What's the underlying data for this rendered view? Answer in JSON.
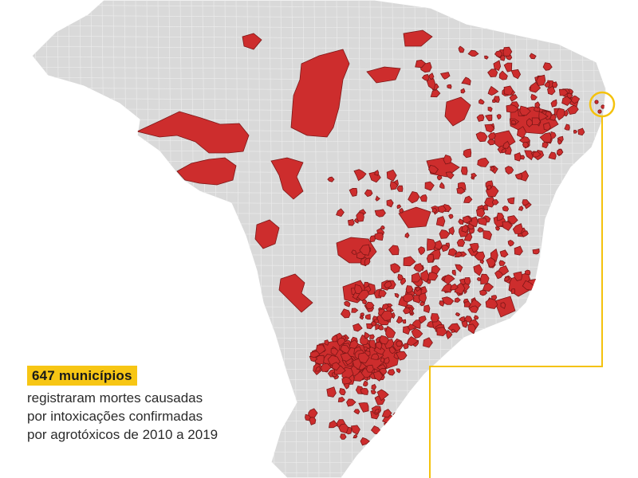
{
  "legend": {
    "count_label": "647 municípios",
    "description_lines": [
      "registraram mortes causadas",
      "por intoxicações confirmadas",
      "por agrotóxicos de 2010 a 2019"
    ]
  },
  "colors": {
    "land": "#d9d9d9",
    "highlighted_municipality": "#cd2d2d",
    "accent": "#f7c614"
  },
  "icons": [
    "callout-circle-icon"
  ]
}
